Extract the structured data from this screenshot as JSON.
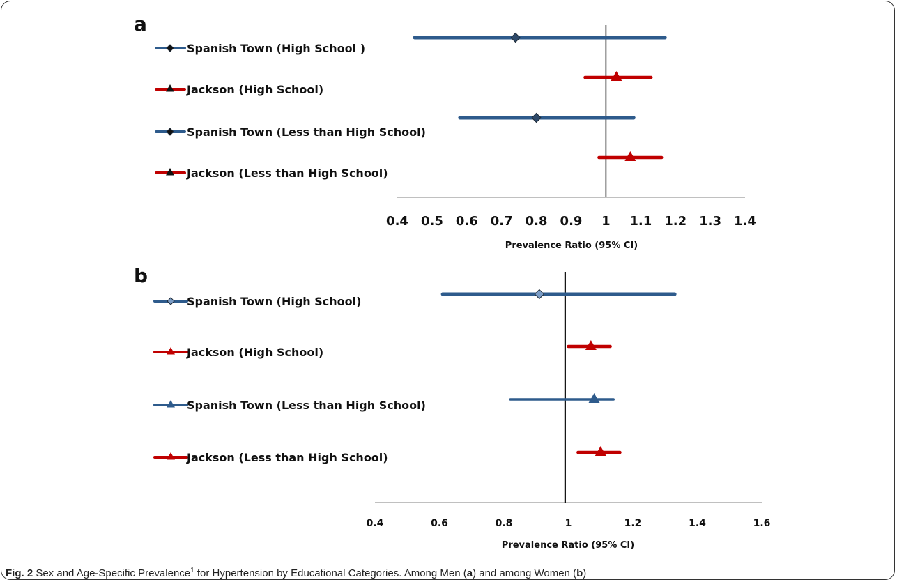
{
  "caption": {
    "label": "Fig. 2",
    "text_1": " Sex and Age-Specific Prevalence",
    "superscript": "1",
    "text_2": " for Hypertension by Educational Categories. Among Men (",
    "a": "a",
    "text_3": ") and among Women (",
    "b": "b",
    "text_4": ")"
  },
  "chart_data": [
    {
      "type": "forest",
      "panel_label": "a",
      "xlabel": "Prevalence Ratio (95% CI)",
      "xlim": [
        0.4,
        1.4
      ],
      "tick_labels": [
        "0.4",
        "0.5",
        "0.6",
        "0.7",
        "0.8",
        "0.9",
        "1",
        "1.1",
        "1.2",
        "1.3",
        "1.4"
      ],
      "reference_line": 1.0,
      "series": [
        {
          "name": "Spanish Town (High School )",
          "estimate": 0.74,
          "lower": 0.45,
          "upper": 1.17,
          "color": "#2e5b8c",
          "marker": "diamond",
          "marker_color": "#2e4a6a"
        },
        {
          "name": "Jackson (High School)",
          "estimate": 1.03,
          "lower": 0.94,
          "upper": 1.13,
          "color": "#c00000",
          "marker": "triangle",
          "marker_color": "#c00000"
        },
        {
          "name": "Spanish Town (Less than  High School)",
          "estimate": 0.8,
          "lower": 0.58,
          "upper": 1.08,
          "color": "#2e5b8c",
          "marker": "diamond",
          "marker_color": "#2e4a6a"
        },
        {
          "name": "Jackson (Less than  High School)",
          "estimate": 1.07,
          "lower": 0.98,
          "upper": 1.16,
          "color": "#c00000",
          "marker": "triangle",
          "marker_color": "#c00000"
        }
      ]
    },
    {
      "type": "forest",
      "panel_label": "b",
      "xlabel": "Prevalence Ratio (95% CI)",
      "xlim": [
        0.4,
        1.6
      ],
      "tick_labels": [
        "0.4",
        "0.6",
        "0.8",
        "1",
        "1.2",
        "1.4",
        "1.6"
      ],
      "reference_line": 0.99,
      "series": [
        {
          "name": "Spanish Town (High School)",
          "estimate": 0.91,
          "lower": 0.61,
          "upper": 1.33,
          "color": "#2e5b8c",
          "marker": "diamond",
          "marker_color": "#7a9cc6"
        },
        {
          "name": "Jackson (High School)",
          "estimate": 1.07,
          "lower": 1.0,
          "upper": 1.13,
          "color": "#c00000",
          "marker": "triangle",
          "marker_color": "#c00000"
        },
        {
          "name": "Spanish Town (Less than  High School)",
          "estimate": 1.08,
          "lower": 0.82,
          "upper": 1.14,
          "color": "#2e5b8c",
          "marker": "triangle",
          "marker_color": "#2e5b8c"
        },
        {
          "name": "Jackson (Less than  High School)",
          "estimate": 1.1,
          "lower": 1.03,
          "upper": 1.16,
          "color": "#c00000",
          "marker": "triangle",
          "marker_color": "#c00000"
        }
      ]
    }
  ]
}
